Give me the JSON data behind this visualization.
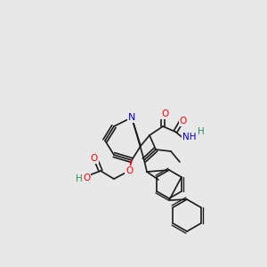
{
  "bg_color": "#e8e8e8",
  "bond_color": "#1a1a1a",
  "atom_colors": {
    "O": "#ff0000",
    "N": "#0000cd",
    "H": "#2e8b57",
    "C": "#1a1a1a"
  },
  "font_size": 7.5,
  "bond_width": 1.2
}
